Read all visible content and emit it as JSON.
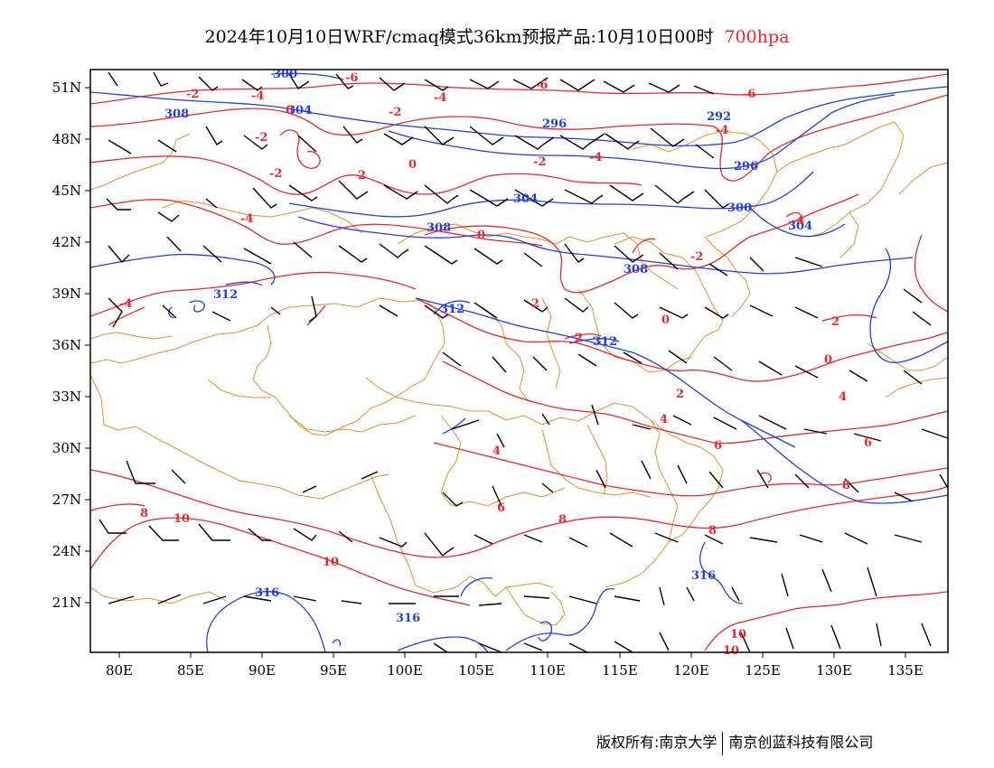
{
  "title": {
    "main": "2024年10月10日WRF/cmaq模式36km预报产品:10月10日00时",
    "level": "700hpa"
  },
  "footer": {
    "copyright": "版权所有:南京大学",
    "company": "南京创蓝科技有限公司"
  },
  "map": {
    "lon_range": [
      78,
      138
    ],
    "lat_range": [
      18,
      52
    ],
    "x_ticks": [
      "80E",
      "85E",
      "90E",
      "95E",
      "100E",
      "105E",
      "110E",
      "115E",
      "120E",
      "125E",
      "130E",
      "135E"
    ],
    "y_ticks": [
      "51N",
      "48N",
      "45N",
      "42N",
      "39N",
      "36N",
      "33N",
      "30N",
      "27N",
      "24N",
      "21N"
    ],
    "colors": {
      "height": "#1f3fe0",
      "temperature": "#e8282d",
      "boundary": "#e0902a",
      "wind": "#000000"
    },
    "height_labels": [
      "300",
      "304",
      "308",
      "296",
      "292",
      "296",
      "300",
      "304",
      "308",
      "304",
      "312",
      "312",
      "312",
      "308",
      "316",
      "316",
      "316"
    ],
    "temp_labels": [
      "-6",
      "-2",
      "-4",
      "0",
      "-2",
      "-4",
      "-6",
      "-6",
      "-2",
      "0",
      "-4",
      "2",
      "-2",
      "-2",
      "-4",
      "-4",
      "0",
      "2",
      "-2",
      "2",
      "0",
      "-4",
      "-4",
      "2",
      "0",
      "2",
      "4",
      "4",
      "6",
      "6",
      "8",
      "8",
      "8",
      "10",
      "10",
      "10",
      "6",
      "4",
      "8",
      "10"
    ]
  }
}
